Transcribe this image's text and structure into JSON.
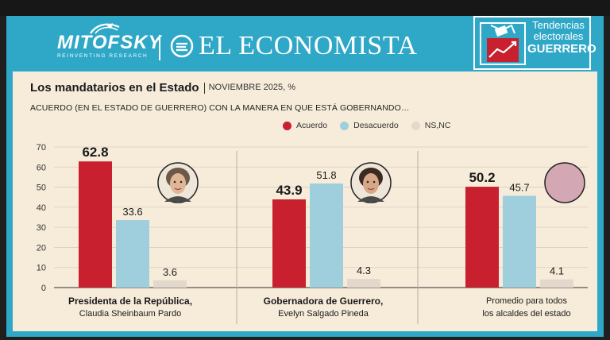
{
  "header": {
    "brand_left": "MITOFSKY",
    "brand_left_tagline": "REINVENTING RESEARCH",
    "brand_right": "EL ECONOMISTA",
    "badge": {
      "line1": "Tendencias",
      "line2": "electorales",
      "line3": "GUERRERO"
    }
  },
  "chart_data": {
    "type": "bar",
    "title": "Los mandatarios en el Estado",
    "subtitle": "NOVIEMBRE 2025, %",
    "question": "ACUERDO (EN EL ESTADO DE GUERRERO) CON LA MANERA EN QUE ESTÁ GOBERNANDO…",
    "ylim": [
      0,
      70
    ],
    "yticks": [
      0,
      10,
      20,
      30,
      40,
      50,
      60,
      70
    ],
    "legend_position": "top-right",
    "grid": true,
    "categories": [
      {
        "line1": "Presidenta de la República,",
        "line2": "Claudia Sheinbaum Pardo",
        "bold_first_line": true,
        "portrait": "woman-portrait-icon"
      },
      {
        "line1": "Gobernadora de Guerrero,",
        "line2": "Evelyn Salgado Pineda",
        "bold_first_line": true,
        "portrait": "woman-portrait-icon"
      },
      {
        "line1": "Promedio para todos",
        "line2": "los alcaldes del estado",
        "bold_first_line": false,
        "portrait": "placeholder-circle-icon"
      }
    ],
    "series": [
      {
        "name": "Acuerdo",
        "color": "#c8202e",
        "values": [
          62.8,
          43.9,
          50.2
        ]
      },
      {
        "name": "Desacuerdo",
        "color": "#9fcfdc",
        "values": [
          33.6,
          51.8,
          45.7
        ]
      },
      {
        "name": "NS,NC",
        "color": "#e3d8cb",
        "values": [
          3.6,
          4.3,
          4.1
        ]
      }
    ],
    "labels": [
      [
        "62.8",
        "33.6",
        "3.6"
      ],
      [
        "43.9",
        "51.8",
        "4.3"
      ],
      [
        "50.2",
        "45.7",
        "4.1"
      ]
    ]
  },
  "colors": {
    "frame": "#2fa8c8",
    "panel": "#f7ecda",
    "placeholder_circle": "#d4a7b4"
  }
}
